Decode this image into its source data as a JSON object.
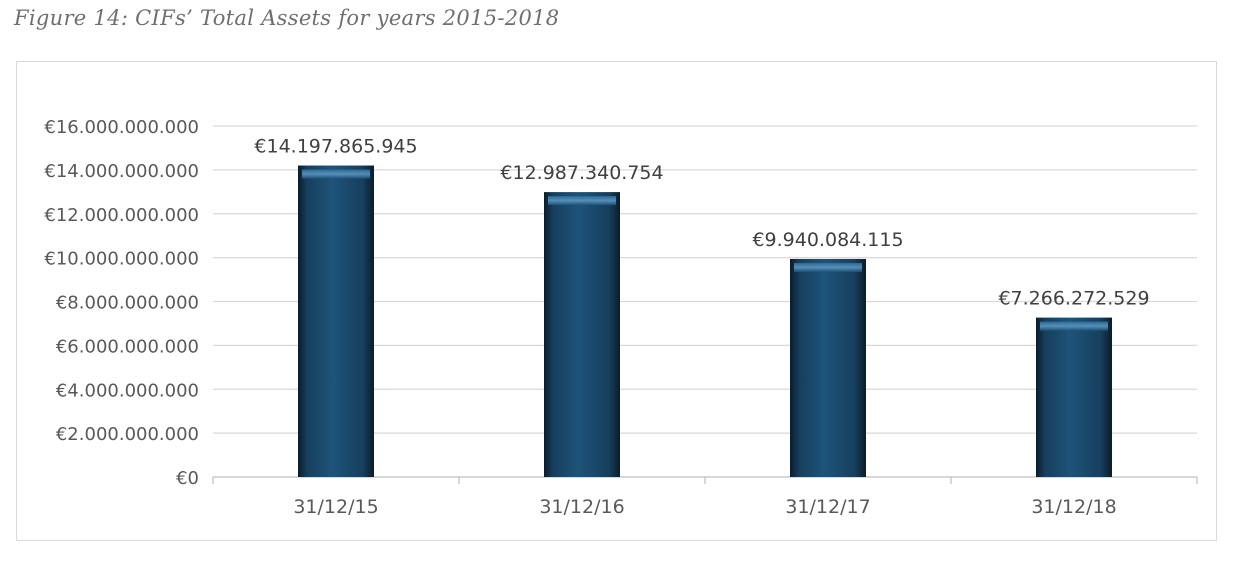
{
  "figure": {
    "caption": "Figure 14: CIFs’ Total Assets for years 2015-2018"
  },
  "chart_data": {
    "type": "bar",
    "title": "",
    "xlabel": "",
    "ylabel": "",
    "categories": [
      "31/12/15",
      "31/12/16",
      "31/12/17",
      "31/12/18"
    ],
    "values": [
      14197865945,
      12987340754,
      9940084115,
      7266272529
    ],
    "data_labels": [
      "€14.197.865.945",
      "€12.987.340.754",
      "€9.940.084.115",
      "€7.266.272.529"
    ],
    "ylim": [
      0,
      16000000000
    ],
    "y_ticks": [
      0,
      2000000000,
      4000000000,
      6000000000,
      8000000000,
      10000000000,
      12000000000,
      14000000000,
      16000000000
    ],
    "y_tick_labels": [
      "€0",
      "€2.000.000.000",
      "€4.000.000.000",
      "€6.000.000.000",
      "€8.000.000.000",
      "€10.000.000.000",
      "€12.000.000.000",
      "€14.000.000.000",
      "€16.000.000.000"
    ],
    "grid": true,
    "legend": "none",
    "bar_color": "#1b4f72"
  }
}
